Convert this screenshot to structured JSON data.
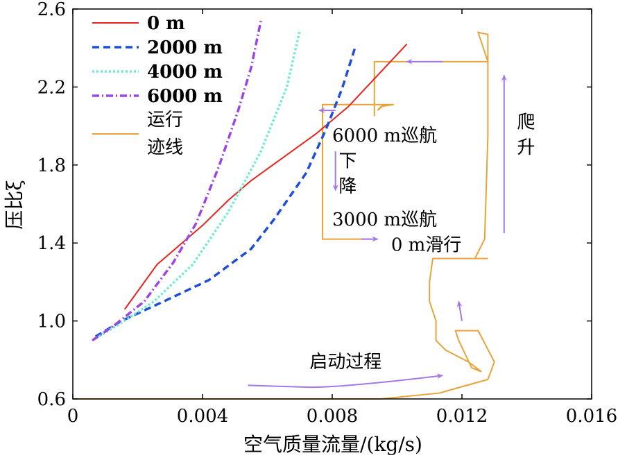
{
  "chart_data": {
    "type": "line",
    "xlabel": "空气质量流量/(kg/s)",
    "ylabel": "压比ξ",
    "xlim": [
      0,
      0.016
    ],
    "ylim": [
      0.6,
      2.6
    ],
    "xticks": [
      {
        "value": 0,
        "label": "0"
      },
      {
        "value": 0.004,
        "label": "0.004"
      },
      {
        "value": 0.008,
        "label": "0.008"
      },
      {
        "value": 0.012,
        "label": "0.012"
      },
      {
        "value": 0.016,
        "label": "0.016"
      }
    ],
    "yticks": [
      {
        "value": 0.6,
        "label": "0.6"
      },
      {
        "value": 1.0,
        "label": "1.0"
      },
      {
        "value": 1.4,
        "label": "1.4"
      },
      {
        "value": 1.8,
        "label": "1.8"
      },
      {
        "value": 2.2,
        "label": "2.2"
      },
      {
        "value": 2.6,
        "label": "2.6"
      }
    ],
    "legend_position": "top-left",
    "series": [
      {
        "name": "0 m",
        "color": "#e8231f",
        "dash": "solid",
        "points": [
          [
            0.0016,
            1.06
          ],
          [
            0.0026,
            1.29
          ],
          [
            0.004,
            1.49
          ],
          [
            0.0048,
            1.62
          ],
          [
            0.0055,
            1.72
          ],
          [
            0.0065,
            1.84
          ],
          [
            0.0075,
            1.96
          ],
          [
            0.0085,
            2.1
          ],
          [
            0.0094,
            2.26
          ],
          [
            0.0103,
            2.42
          ]
        ]
      },
      {
        "name": "2000 m",
        "color": "#1f4ddb",
        "dash": "dashed",
        "points": [
          [
            0.0007,
            0.92
          ],
          [
            0.0015,
            1.0
          ],
          [
            0.0028,
            1.1
          ],
          [
            0.0042,
            1.21
          ],
          [
            0.0055,
            1.37
          ],
          [
            0.0062,
            1.52
          ],
          [
            0.0072,
            1.76
          ],
          [
            0.0078,
            1.98
          ],
          [
            0.0083,
            2.19
          ],
          [
            0.0087,
            2.4
          ]
        ]
      },
      {
        "name": "4000 m",
        "color": "#6fead3",
        "dash": "dotted",
        "points": [
          [
            0.0007,
            0.91
          ],
          [
            0.0014,
            0.98
          ],
          [
            0.0025,
            1.1
          ],
          [
            0.0037,
            1.29
          ],
          [
            0.0048,
            1.56
          ],
          [
            0.0058,
            1.87
          ],
          [
            0.0066,
            2.2
          ],
          [
            0.007,
            2.49
          ]
        ]
      },
      {
        "name": "6000 m",
        "color": "#9c45e6",
        "dash": "dashdot",
        "points": [
          [
            0.0006,
            0.9
          ],
          [
            0.0013,
            0.98
          ],
          [
            0.0022,
            1.1
          ],
          [
            0.0031,
            1.3
          ],
          [
            0.0038,
            1.5
          ],
          [
            0.0045,
            1.79
          ],
          [
            0.0051,
            2.08
          ],
          [
            0.0055,
            2.3
          ],
          [
            0.0058,
            2.54
          ]
        ]
      }
    ],
    "trajectory": {
      "name_line1": "运行",
      "name_line2": "迹线",
      "color": "#e8a33a",
      "points": [
        [
          0.0,
          0.6
        ],
        [
          0.0095,
          0.6
        ],
        [
          0.0113,
          0.63
        ],
        [
          0.0128,
          0.7
        ],
        [
          0.013,
          0.79
        ],
        [
          0.0125,
          0.95
        ],
        [
          0.0118,
          0.95
        ],
        [
          0.0119,
          0.9
        ],
        [
          0.0121,
          0.83
        ],
        [
          0.0123,
          0.76
        ],
        [
          0.0126,
          0.74
        ],
        [
          0.0122,
          0.79
        ],
        [
          0.0115,
          0.85
        ],
        [
          0.0112,
          0.9
        ],
        [
          0.0112,
          1.0
        ],
        [
          0.011,
          1.1
        ],
        [
          0.011,
          1.2
        ],
        [
          0.0111,
          1.32
        ],
        [
          0.0117,
          1.32
        ],
        [
          0.0128,
          1.32
        ],
        [
          0.0124,
          1.32
        ],
        [
          0.0127,
          1.42
        ],
        [
          0.0128,
          1.95
        ],
        [
          0.0128,
          2.47
        ],
        [
          0.0125,
          2.48
        ],
        [
          0.0128,
          2.33
        ],
        [
          0.0093,
          2.33
        ],
        [
          0.0093,
          2.05
        ],
        [
          0.0093,
          2.11
        ],
        [
          0.0099,
          2.11
        ],
        [
          0.0095,
          2.1
        ],
        [
          0.0094,
          2.08
        ],
        [
          0.0096,
          2.11
        ],
        [
          0.0077,
          2.11
        ],
        [
          0.0077,
          1.42
        ],
        [
          0.0092,
          1.42
        ]
      ]
    },
    "phase_arrows": [
      {
        "from": [
          0.0114,
          2.33
        ],
        "to": [
          0.0103,
          2.33
        ]
      },
      {
        "from": [
          0.0081,
          2.08
        ],
        "to": [
          0.0076,
          2.08
        ]
      },
      {
        "from": [
          0.0081,
          1.87
        ],
        "to": [
          0.0081,
          1.67
        ]
      },
      {
        "from": [
          0.0089,
          1.42
        ],
        "to": [
          0.0094,
          1.42
        ]
      },
      {
        "from": [
          0.0133,
          1.45
        ],
        "to": [
          0.0133,
          2.26
        ]
      },
      {
        "from": [
          0.012,
          1.0
        ],
        "to": [
          0.0119,
          1.1
        ]
      },
      {
        "from": [
          0.0054,
          0.67
        ],
        "to": [
          0.0073,
          0.66
        ],
        "via": [
          [
            0.0062,
            0.64
          ],
          [
            0.0084,
            0.66
          ],
          [
            0.0114,
            0.72
          ]
        ],
        "end": [
          0.0114,
          0.72
        ]
      }
    ],
    "annotations": [
      {
        "text": "6000 m巡航",
        "x": 0.008,
        "y": 1.92,
        "anchor": "start"
      },
      {
        "text": "下",
        "x": 0.0082,
        "y": 1.79,
        "anchor": "start"
      },
      {
        "text": "降",
        "x": 0.0082,
        "y": 1.66,
        "anchor": "start"
      },
      {
        "text": "3000 m巡航",
        "x": 0.008,
        "y": 1.49,
        "anchor": "start"
      },
      {
        "text": "0 m滑行",
        "x": 0.0109,
        "y": 1.36,
        "anchor": "middle"
      },
      {
        "text": "爬",
        "x": 0.0137,
        "y": 1.99,
        "anchor": "start"
      },
      {
        "text": "升",
        "x": 0.0137,
        "y": 1.86,
        "anchor": "start"
      },
      {
        "text": "启动过程",
        "x": 0.0073,
        "y": 0.76,
        "anchor": "start"
      }
    ],
    "annotation_color": "#a277e6"
  }
}
